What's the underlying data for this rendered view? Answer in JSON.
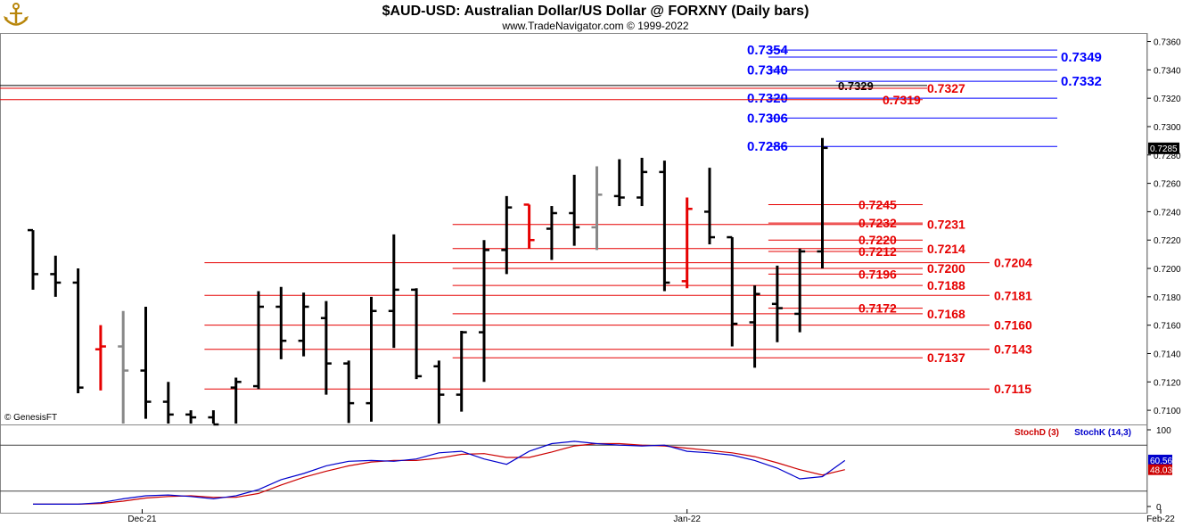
{
  "header": {
    "title": "$AUD-USD:  Australian Dollar/US Dollar @ FORXNY  (Daily bars)",
    "subtitle": "www.TradeNavigator.com © 1999-2022",
    "logo_icon": "anchor-logo-icon"
  },
  "watermark": "© GenesisFT",
  "colors": {
    "bar_normal": "#000000",
    "bar_red": "#e60000",
    "bar_gray": "#888888",
    "level_blue": "#0000ff",
    "level_red": "#e60000",
    "stoch_d": "#cc0000",
    "stoch_k": "#0000cc",
    "last_price_tag": "#000000",
    "stoch_k_tag": "#0000cc",
    "stoch_d_tag": "#cc0000"
  },
  "chart_data": {
    "type": "ohlc",
    "title": "$AUD-USD:  Australian Dollar/US Dollar @ FORXNY  (Daily bars)",
    "price_axis": {
      "ylim": [
        0.709,
        0.7366
      ],
      "ticks": [
        "0.7100",
        "0.7120",
        "0.7140",
        "0.7160",
        "0.7180",
        "0.7200",
        "0.7220",
        "0.7240",
        "0.7260",
        "0.7280",
        "0.7300",
        "0.7320",
        "0.7340",
        "0.7360"
      ]
    },
    "x_axis": {
      "date_labels": [
        "Dec-21",
        "Jan-22",
        "Feb-22"
      ],
      "date_label_bar_index": [
        5,
        29,
        50
      ]
    },
    "last_price": "0.7285",
    "bars": [
      {
        "i": 0,
        "o": 0.7227,
        "h": 0.7227,
        "l": 0.7185,
        "c": 0.7196,
        "color": "black"
      },
      {
        "i": 1,
        "o": 0.7196,
        "h": 0.7209,
        "l": 0.718,
        "c": 0.719,
        "color": "black"
      },
      {
        "i": 2,
        "o": 0.719,
        "h": 0.72,
        "l": 0.7112,
        "c": 0.7116,
        "color": "black"
      },
      {
        "i": 3,
        "o": 0.7143,
        "h": 0.716,
        "l": 0.7114,
        "c": 0.7145,
        "color": "red"
      },
      {
        "i": 4,
        "o": 0.7145,
        "h": 0.717,
        "l": 0.708,
        "c": 0.7128,
        "color": "gray"
      },
      {
        "i": 5,
        "o": 0.7128,
        "h": 0.7173,
        "l": 0.7094,
        "c": 0.7106,
        "color": "black"
      },
      {
        "i": 6,
        "o": 0.7106,
        "h": 0.712,
        "l": 0.7085,
        "c": 0.7097,
        "color": "black"
      },
      {
        "i": 7,
        "o": 0.7097,
        "h": 0.71,
        "l": 0.7075,
        "c": 0.7095,
        "color": "black"
      },
      {
        "i": 8,
        "o": 0.7095,
        "h": 0.71,
        "l": 0.7082,
        "c": 0.709,
        "color": "black"
      },
      {
        "i": 9,
        "o": 0.7116,
        "h": 0.7123,
        "l": 0.708,
        "c": 0.712,
        "color": "black"
      },
      {
        "i": 10,
        "o": 0.7117,
        "h": 0.7184,
        "l": 0.7115,
        "c": 0.7173,
        "color": "black"
      },
      {
        "i": 11,
        "o": 0.7173,
        "h": 0.7187,
        "l": 0.7136,
        "c": 0.7149,
        "color": "black"
      },
      {
        "i": 12,
        "o": 0.7149,
        "h": 0.7183,
        "l": 0.7138,
        "c": 0.7173,
        "color": "black"
      },
      {
        "i": 13,
        "o": 0.7165,
        "h": 0.7177,
        "l": 0.7111,
        "c": 0.7133,
        "color": "black"
      },
      {
        "i": 14,
        "o": 0.7133,
        "h": 0.7135,
        "l": 0.7091,
        "c": 0.7105,
        "color": "black"
      },
      {
        "i": 15,
        "o": 0.7105,
        "h": 0.718,
        "l": 0.7092,
        "c": 0.717,
        "color": "black"
      },
      {
        "i": 16,
        "o": 0.717,
        "h": 0.7224,
        "l": 0.7144,
        "c": 0.7185,
        "color": "black"
      },
      {
        "i": 17,
        "o": 0.7185,
        "h": 0.7186,
        "l": 0.7122,
        "c": 0.7124,
        "color": "black"
      },
      {
        "i": 18,
        "o": 0.7131,
        "h": 0.7135,
        "l": 0.7088,
        "c": 0.7111,
        "color": "black"
      },
      {
        "i": 19,
        "o": 0.7111,
        "h": 0.7156,
        "l": 0.7099,
        "c": 0.7155,
        "color": "black"
      },
      {
        "i": 20,
        "o": 0.7155,
        "h": 0.722,
        "l": 0.712,
        "c": 0.7213,
        "color": "black"
      },
      {
        "i": 21,
        "o": 0.7213,
        "h": 0.7251,
        "l": 0.7196,
        "c": 0.7243,
        "color": "black"
      },
      {
        "i": 22,
        "o": 0.7245,
        "h": 0.7245,
        "l": 0.7214,
        "c": 0.722,
        "color": "red"
      },
      {
        "i": 23,
        "o": 0.7228,
        "h": 0.7244,
        "l": 0.7206,
        "c": 0.7239,
        "color": "black"
      },
      {
        "i": 24,
        "o": 0.7239,
        "h": 0.7266,
        "l": 0.7216,
        "c": 0.7229,
        "color": "black"
      },
      {
        "i": 25,
        "o": 0.7229,
        "h": 0.7272,
        "l": 0.7213,
        "c": 0.7252,
        "color": "gray"
      },
      {
        "i": 26,
        "o": 0.7251,
        "h": 0.7277,
        "l": 0.7244,
        "c": 0.725,
        "color": "black"
      },
      {
        "i": 27,
        "o": 0.725,
        "h": 0.7278,
        "l": 0.7244,
        "c": 0.7268,
        "color": "black"
      },
      {
        "i": 28,
        "o": 0.7268,
        "h": 0.7276,
        "l": 0.7184,
        "c": 0.719,
        "color": "black"
      },
      {
        "i": 29,
        "o": 0.7191,
        "h": 0.725,
        "l": 0.7186,
        "c": 0.7242,
        "color": "red"
      },
      {
        "i": 30,
        "o": 0.724,
        "h": 0.7271,
        "l": 0.7217,
        "c": 0.7222,
        "color": "black"
      },
      {
        "i": 31,
        "o": 0.7222,
        "h": 0.7222,
        "l": 0.7145,
        "c": 0.7161,
        "color": "black"
      },
      {
        "i": 32,
        "o": 0.7162,
        "h": 0.7188,
        "l": 0.713,
        "c": 0.7182,
        "color": "black"
      },
      {
        "i": 33,
        "o": 0.7175,
        "h": 0.7202,
        "l": 0.7148,
        "c": 0.7172,
        "color": "black"
      },
      {
        "i": 34,
        "o": 0.7168,
        "h": 0.7214,
        "l": 0.7155,
        "c": 0.7212,
        "color": "black"
      },
      {
        "i": 35,
        "o": 0.7212,
        "h": 0.7292,
        "l": 0.72,
        "c": 0.7285,
        "color": "black"
      }
    ],
    "levels": [
      {
        "label": "0.7354",
        "value": 0.7354,
        "color": "blue",
        "line_from_bar": 33,
        "label_pos": "left"
      },
      {
        "label": "0.7349",
        "value": 0.7349,
        "color": "blue",
        "line_from_bar": 33,
        "label_pos": "right"
      },
      {
        "label": "0.7340",
        "value": 0.734,
        "color": "blue",
        "line_from_bar": 33,
        "label_pos": "left"
      },
      {
        "label": "0.7332",
        "value": 0.7332,
        "color": "blue",
        "line_from_bar": 36,
        "label_pos": "right"
      },
      {
        "label": "0.7329",
        "value": 0.7329,
        "color": "black",
        "line_from_bar": -2,
        "label_pos": "mid"
      },
      {
        "label": "0.7327",
        "value": 0.7327,
        "color": "red",
        "line_from_bar": -2,
        "label_pos": "right"
      },
      {
        "label": "0.7320",
        "value": 0.732,
        "color": "blue",
        "line_from_bar": 33,
        "label_pos": "left"
      },
      {
        "label": "0.7319",
        "value": 0.7319,
        "color": "red",
        "line_from_bar": -2,
        "label_pos": "mid"
      },
      {
        "label": "0.7306",
        "value": 0.7306,
        "color": "blue",
        "line_from_bar": 33,
        "label_pos": "left"
      },
      {
        "label": "0.7286",
        "value": 0.7286,
        "color": "blue",
        "line_from_bar": 33,
        "label_pos": "left"
      },
      {
        "label": "0.7245",
        "value": 0.7245,
        "color": "red",
        "line_from_bar": 33,
        "label_pos": "left"
      },
      {
        "label": "0.7232",
        "value": 0.7232,
        "color": "red",
        "line_from_bar": 33,
        "label_pos": "left"
      },
      {
        "label": "0.7231",
        "value": 0.7231,
        "color": "red",
        "line_from_bar": 19,
        "label_pos": "right"
      },
      {
        "label": "0.7220",
        "value": 0.722,
        "color": "red",
        "line_from_bar": 33,
        "label_pos": "left"
      },
      {
        "label": "0.7214",
        "value": 0.7214,
        "color": "red",
        "line_from_bar": 19,
        "label_pos": "right"
      },
      {
        "label": "0.7212",
        "value": 0.7212,
        "color": "red",
        "line_from_bar": 33,
        "label_pos": "left"
      },
      {
        "label": "0.7204",
        "value": 0.7204,
        "color": "red",
        "line_from_bar": 8,
        "label_pos": "far"
      },
      {
        "label": "0.7200",
        "value": 0.72,
        "color": "red",
        "line_from_bar": 19,
        "label_pos": "right"
      },
      {
        "label": "0.7196",
        "value": 0.7196,
        "color": "red",
        "line_from_bar": 33,
        "label_pos": "left"
      },
      {
        "label": "0.7188",
        "value": 0.7188,
        "color": "red",
        "line_from_bar": 19,
        "label_pos": "right"
      },
      {
        "label": "0.7181",
        "value": 0.7181,
        "color": "red",
        "line_from_bar": 8,
        "label_pos": "far"
      },
      {
        "label": "0.7172",
        "value": 0.7172,
        "color": "red",
        "line_from_bar": 33,
        "label_pos": "left"
      },
      {
        "label": "0.7168",
        "value": 0.7168,
        "color": "red",
        "line_from_bar": 19,
        "label_pos": "right"
      },
      {
        "label": "0.7160",
        "value": 0.716,
        "color": "red",
        "line_from_bar": 8,
        "label_pos": "far"
      },
      {
        "label": "0.7143",
        "value": 0.7143,
        "color": "red",
        "line_from_bar": 8,
        "label_pos": "far"
      },
      {
        "label": "0.7137",
        "value": 0.7137,
        "color": "red",
        "line_from_bar": 19,
        "label_pos": "right"
      },
      {
        "label": "0.7115",
        "value": 0.7115,
        "color": "red",
        "line_from_bar": 8,
        "label_pos": "far"
      }
    ],
    "stochastic": {
      "legend_d": "StochD (3)",
      "legend_k": "StochK (14,3)",
      "ylim": [
        0,
        100
      ],
      "ticks": [
        "0",
        "100"
      ],
      "bands": [
        20,
        80
      ],
      "k_last": "60.56",
      "d_last": "48.03",
      "k": [
        3,
        3,
        3,
        5,
        10,
        14,
        15,
        13,
        10,
        14,
        22,
        35,
        43,
        53,
        59,
        60,
        59,
        62,
        70,
        72,
        62,
        55,
        72,
        82,
        85,
        82,
        80,
        79,
        80,
        72,
        70,
        67,
        60,
        50,
        36,
        39,
        60
      ],
      "d": [
        3,
        3,
        3,
        4,
        7,
        11,
        13,
        14,
        12,
        12,
        17,
        28,
        38,
        46,
        53,
        58,
        60,
        60,
        63,
        68,
        69,
        64,
        64,
        71,
        79,
        82,
        82,
        80,
        79,
        76,
        73,
        70,
        65,
        57,
        48,
        41,
        48
      ]
    }
  }
}
